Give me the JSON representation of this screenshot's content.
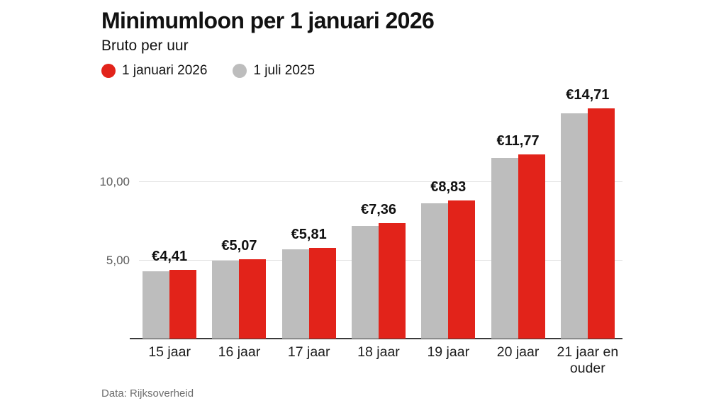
{
  "header": {
    "title": "Minimumloon per 1 januari 2026",
    "subtitle": "Bruto per uur"
  },
  "legend": [
    {
      "label": "1 januari 2026",
      "color": "#e2231a"
    },
    {
      "label": "1 juli 2025",
      "color": "#bdbdbd"
    }
  ],
  "footer": {
    "source": "Data: Rijksoverheid"
  },
  "chart_data": {
    "type": "bar",
    "title": "Minimumloon per 1 januari 2026",
    "subtitle": "Bruto per uur",
    "categories": [
      "15 jaar",
      "16 jaar",
      "17 jaar",
      "18 jaar",
      "19 jaar",
      "20 jaar",
      "21 jaar en ouder"
    ],
    "series": [
      {
        "name": "1 juli 2025",
        "color": "#bdbdbd",
        "values": [
          4.32,
          4.97,
          5.69,
          7.2,
          8.64,
          11.52,
          14.4
        ]
      },
      {
        "name": "1 januari 2026",
        "color": "#e2231a",
        "values": [
          4.41,
          5.07,
          5.81,
          7.36,
          8.83,
          11.77,
          14.71
        ],
        "value_labels": [
          "€4,41",
          "€5,07",
          "€5,81",
          "€7,36",
          "€8,83",
          "€11,77",
          "€14,71"
        ]
      }
    ],
    "bar_order": [
      "1 juli 2025",
      "1 januari 2026"
    ],
    "xlabel": "",
    "ylabel": "",
    "ylim": [
      0,
      15.75
    ],
    "yticks": [
      {
        "value": 5,
        "label": "5,00"
      },
      {
        "value": 10,
        "label": "10,00"
      }
    ],
    "grid": true,
    "legend_position": "top-left",
    "source": "Data: Rijksoverheid"
  }
}
